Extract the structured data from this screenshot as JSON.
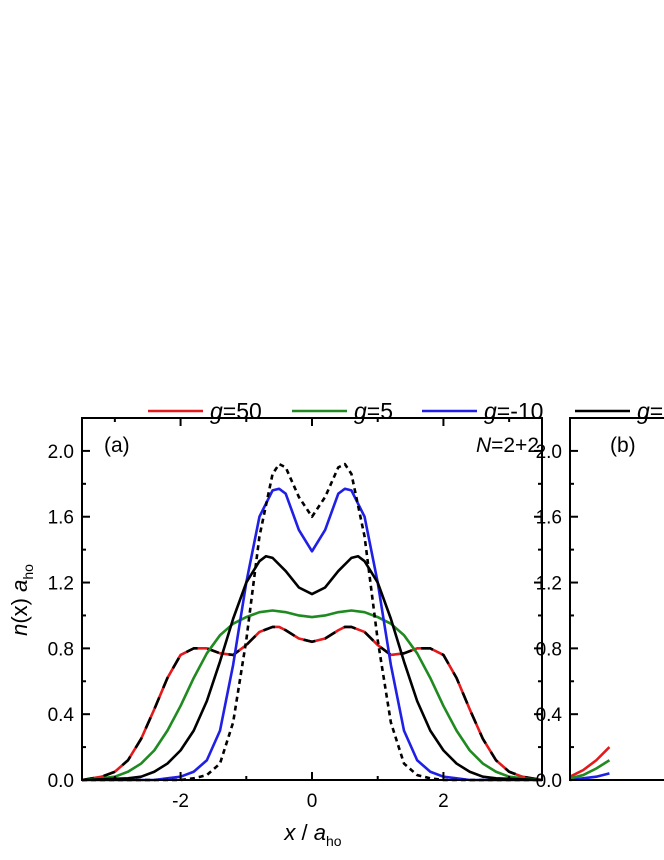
{
  "chart_data": {
    "type": "line",
    "legend": {
      "placement": "top",
      "entries": [
        {
          "var": "g",
          "value": "=50",
          "color": "#e3191c",
          "dash": "solid"
        },
        {
          "var": "g",
          "value": "=5",
          "color": "#1f8a1f",
          "dash": "solid"
        },
        {
          "var": "g",
          "value": "=-10",
          "color": "#1f1fe6",
          "dash": "solid"
        },
        {
          "var": "g",
          "value": "=",
          "color": "#000000",
          "dash": "solid"
        }
      ]
    },
    "xlabel": {
      "main": "x",
      "sep": " / ",
      "sym": "a",
      "sub": "ho"
    },
    "ylabel": {
      "main": "n",
      "paren": "(x)",
      "sym": "a",
      "sub": "ho"
    },
    "panels": [
      {
        "label": "(a)",
        "annotation": {
          "var": "N",
          "value": "=2+2"
        },
        "xlim": [
          -3.5,
          3.5
        ],
        "ylim": [
          0,
          2.2
        ],
        "xticks": [
          -2,
          0,
          2
        ],
        "xtick_labels": [
          "-2",
          "0",
          "2"
        ],
        "yticks": [
          0,
          0.4,
          0.8,
          1.2,
          1.6,
          2.0
        ],
        "ytick_labels": [
          "0.0",
          "0.4",
          "0.8",
          "1.2",
          "1.6",
          "2.0"
        ],
        "series": [
          {
            "id": "g50",
            "color": "#e3191c",
            "style": "solid",
            "x": [
              -3.5,
              -3.2,
              -3.0,
              -2.8,
              -2.6,
              -2.4,
              -2.2,
              -2.0,
              -1.8,
              -1.6,
              -1.4,
              -1.2,
              -1.0,
              -0.8,
              -0.6,
              -0.5,
              -0.4,
              -0.2,
              0.0,
              0.2,
              0.4,
              0.5,
              0.6,
              0.8,
              1.0,
              1.2,
              1.4,
              1.6,
              1.8,
              2.0,
              2.2,
              2.4,
              2.6,
              2.8,
              3.0,
              3.2,
              3.5
            ],
            "y": [
              0.0,
              0.02,
              0.05,
              0.12,
              0.25,
              0.43,
              0.62,
              0.76,
              0.8,
              0.8,
              0.77,
              0.76,
              0.82,
              0.9,
              0.93,
              0.93,
              0.91,
              0.86,
              0.84,
              0.86,
              0.91,
              0.93,
              0.93,
              0.9,
              0.82,
              0.76,
              0.77,
              0.8,
              0.8,
              0.76,
              0.62,
              0.43,
              0.25,
              0.12,
              0.05,
              0.02,
              0.0
            ]
          },
          {
            "id": "g50-overlay",
            "color": "#000000",
            "style": "dashed",
            "x": [
              -3.5,
              -3.2,
              -3.0,
              -2.8,
              -2.6,
              -2.4,
              -2.2,
              -2.0,
              -1.8,
              -1.6,
              -1.4,
              -1.2,
              -1.0,
              -0.8,
              -0.6,
              -0.5,
              -0.4,
              -0.2,
              0.0,
              0.2,
              0.4,
              0.5,
              0.6,
              0.8,
              1.0,
              1.2,
              1.4,
              1.6,
              1.8,
              2.0,
              2.2,
              2.4,
              2.6,
              2.8,
              3.0,
              3.2,
              3.5
            ],
            "y": [
              0.0,
              0.02,
              0.05,
              0.12,
              0.25,
              0.43,
              0.62,
              0.76,
              0.8,
              0.8,
              0.77,
              0.76,
              0.82,
              0.9,
              0.93,
              0.93,
              0.91,
              0.86,
              0.84,
              0.86,
              0.91,
              0.93,
              0.93,
              0.9,
              0.82,
              0.76,
              0.77,
              0.8,
              0.8,
              0.76,
              0.62,
              0.43,
              0.25,
              0.12,
              0.05,
              0.02,
              0.0
            ]
          },
          {
            "id": "g5",
            "color": "#1f8a1f",
            "style": "solid",
            "x": [
              -3.5,
              -3.2,
              -3.0,
              -2.8,
              -2.6,
              -2.4,
              -2.2,
              -2.0,
              -1.8,
              -1.6,
              -1.4,
              -1.2,
              -1.0,
              -0.8,
              -0.6,
              -0.4,
              -0.2,
              0.0,
              0.2,
              0.4,
              0.6,
              0.8,
              1.0,
              1.2,
              1.4,
              1.6,
              1.8,
              2.0,
              2.2,
              2.4,
              2.6,
              2.8,
              3.0,
              3.2,
              3.5
            ],
            "y": [
              0.0,
              0.01,
              0.02,
              0.05,
              0.1,
              0.18,
              0.3,
              0.45,
              0.62,
              0.77,
              0.88,
              0.95,
              0.99,
              1.02,
              1.03,
              1.02,
              1.0,
              0.99,
              1.0,
              1.02,
              1.03,
              1.02,
              0.99,
              0.95,
              0.88,
              0.77,
              0.62,
              0.45,
              0.3,
              0.18,
              0.1,
              0.05,
              0.02,
              0.01,
              0.0
            ]
          },
          {
            "id": "g-10",
            "color": "#1f1fe6",
            "style": "solid",
            "x": [
              -3.5,
              -2.4,
              -2.2,
              -2.0,
              -1.8,
              -1.6,
              -1.4,
              -1.2,
              -1.0,
              -0.8,
              -0.6,
              -0.5,
              -0.4,
              -0.2,
              0.0,
              0.2,
              0.4,
              0.5,
              0.6,
              0.8,
              1.0,
              1.2,
              1.4,
              1.6,
              1.8,
              2.0,
              2.2,
              2.4,
              3.5
            ],
            "y": [
              0.0,
              0.0,
              0.01,
              0.02,
              0.05,
              0.12,
              0.3,
              0.7,
              1.2,
              1.6,
              1.76,
              1.77,
              1.74,
              1.52,
              1.39,
              1.52,
              1.74,
              1.77,
              1.76,
              1.6,
              1.2,
              0.7,
              0.3,
              0.12,
              0.05,
              0.02,
              0.01,
              0.0,
              0.0
            ]
          },
          {
            "id": "g-other",
            "color": "#000000",
            "style": "solid",
            "x": [
              -3.5,
              -2.8,
              -2.6,
              -2.4,
              -2.2,
              -2.0,
              -1.8,
              -1.6,
              -1.4,
              -1.2,
              -1.0,
              -0.8,
              -0.7,
              -0.6,
              -0.4,
              -0.2,
              0.0,
              0.2,
              0.4,
              0.6,
              0.7,
              0.8,
              1.0,
              1.2,
              1.4,
              1.6,
              1.8,
              2.0,
              2.2,
              2.4,
              2.6,
              2.8,
              3.5
            ],
            "y": [
              0.0,
              0.01,
              0.02,
              0.05,
              0.1,
              0.18,
              0.3,
              0.48,
              0.72,
              0.98,
              1.2,
              1.33,
              1.36,
              1.35,
              1.27,
              1.17,
              1.13,
              1.17,
              1.27,
              1.35,
              1.36,
              1.33,
              1.2,
              0.98,
              0.72,
              0.48,
              0.3,
              0.18,
              0.1,
              0.05,
              0.02,
              0.01,
              0.0
            ]
          },
          {
            "id": "ideal",
            "color": "#000000",
            "style": "dotted",
            "x": [
              -3.5,
              -2.2,
              -2.0,
              -1.8,
              -1.6,
              -1.4,
              -1.2,
              -1.0,
              -0.8,
              -0.6,
              -0.5,
              -0.4,
              -0.2,
              0.0,
              0.2,
              0.4,
              0.5,
              0.6,
              0.8,
              1.0,
              1.2,
              1.4,
              1.6,
              1.8,
              2.0,
              2.2,
              3.5
            ],
            "y": [
              0.0,
              0.0,
              0.0,
              0.01,
              0.03,
              0.1,
              0.35,
              0.85,
              1.48,
              1.86,
              1.92,
              1.9,
              1.72,
              1.6,
              1.72,
              1.9,
              1.92,
              1.86,
              1.48,
              0.85,
              0.35,
              0.1,
              0.03,
              0.01,
              0.0,
              0.0,
              0.0
            ]
          }
        ]
      },
      {
        "label": "(b)",
        "xlim": [
          -3.5,
          3.5
        ],
        "ylim": [
          0,
          2.2
        ],
        "yticks": [
          0,
          0.4,
          0.8,
          1.2,
          1.6,
          2.0
        ],
        "ytick_labels": [
          "0.0",
          "0.4",
          "0.8",
          "1.2",
          "1.6",
          "2.0"
        ],
        "series": [
          {
            "id": "b-blue",
            "color": "#1f1fe6",
            "style": "solid",
            "x": [
              -3.5,
              -3.3,
              -3.1,
              -2.9
            ],
            "y": [
              0.0,
              0.01,
              0.02,
              0.04
            ]
          },
          {
            "id": "b-red",
            "color": "#e3191c",
            "style": "solid",
            "x": [
              -3.5,
              -3.3,
              -3.1,
              -2.9
            ],
            "y": [
              0.02,
              0.06,
              0.12,
              0.2
            ]
          },
          {
            "id": "b-green",
            "color": "#1f8a1f",
            "style": "solid",
            "x": [
              -3.5,
              -3.3,
              -3.1,
              -2.9
            ],
            "y": [
              0.01,
              0.03,
              0.07,
              0.12
            ]
          }
        ]
      }
    ]
  }
}
